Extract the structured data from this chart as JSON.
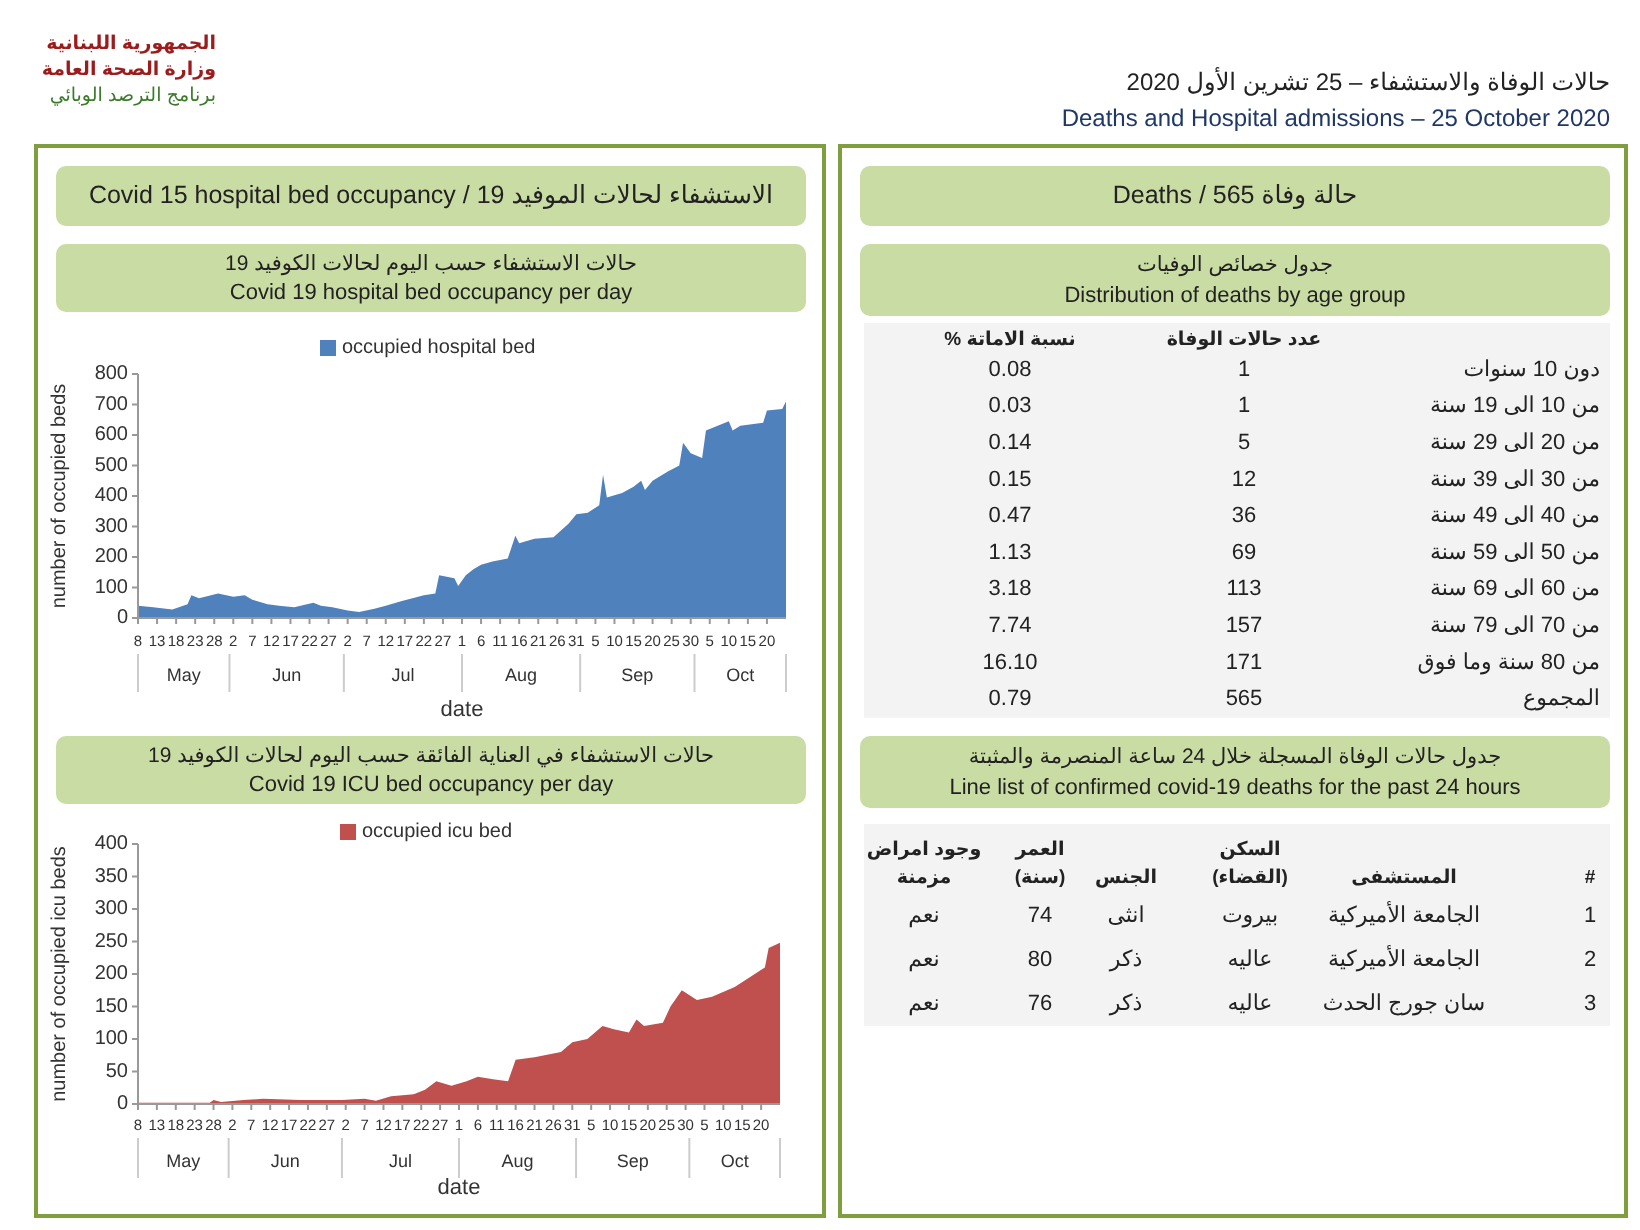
{
  "chart_data": [
    {
      "type": "other",
      "title": "حالات الوفاة والاستشفاء – 25 تشرين الأول 2020",
      "subtitle": "Deaths and Hospital admissions – 25 October 2020",
      "annotations": [
        "الجمهورية اللبنانية",
        "وزارة الصحة العامة",
        "برنامج الترصد الوبائي"
      ]
    },
    {
      "type": "other",
      "title": "الاستشفاء لحالات الموفيد 19 / Covid 15 hospital bed occupancy"
    },
    {
      "type": "area",
      "title": "حالات الاستشفاء حسب اليوم لحالات الكوفيد 19",
      "subtitle": "Covid 19 hospital bed occupancy per day",
      "xlabel": "date",
      "ylabel": "number of occupied beds",
      "legend": "top",
      "x": [
        "2020-05-08",
        "2020-05-12",
        "2020-05-17",
        "2020-05-21",
        "2020-05-22",
        "2020-05-24",
        "2020-05-29",
        "2020-06-02",
        "2020-06-05",
        "2020-06-07",
        "2020-06-11",
        "2020-06-14",
        "2020-06-18",
        "2020-06-23",
        "2020-06-25",
        "2020-06-28",
        "2020-07-02",
        "2020-07-05",
        "2020-07-09",
        "2020-07-12",
        "2020-07-16",
        "2020-07-19",
        "2020-07-22",
        "2020-07-25",
        "2020-07-26",
        "2020-07-30",
        "2020-07-31",
        "2020-08-02",
        "2020-08-04",
        "2020-08-06",
        "2020-08-09",
        "2020-08-13",
        "2020-08-15",
        "2020-08-16",
        "2020-08-20",
        "2020-08-25",
        "2020-08-29",
        "2020-08-31",
        "2020-09-03",
        "2020-09-06",
        "2020-09-07",
        "2020-09-08",
        "2020-09-12",
        "2020-09-15",
        "2020-09-17",
        "2020-09-18",
        "2020-09-20",
        "2020-09-24",
        "2020-09-27",
        "2020-09-28",
        "2020-09-30",
        "2020-10-03",
        "2020-10-04",
        "2020-10-10",
        "2020-10-11",
        "2020-10-13",
        "2020-10-19",
        "2020-10-20",
        "2020-10-24",
        "2020-10-25"
      ],
      "series": [
        {
          "name": "occupied hospital bed",
          "color": "#4f81bd",
          "values": [
            40,
            35,
            28,
            45,
            75,
            65,
            80,
            70,
            75,
            60,
            45,
            40,
            35,
            50,
            40,
            35,
            25,
            20,
            30,
            40,
            55,
            65,
            75,
            80,
            140,
            130,
            105,
            140,
            160,
            175,
            185,
            195,
            270,
            245,
            260,
            265,
            310,
            340,
            345,
            370,
            470,
            395,
            410,
            430,
            450,
            420,
            450,
            480,
            500,
            575,
            540,
            525,
            615,
            645,
            615,
            630,
            640,
            680,
            685,
            710
          ]
        }
      ],
      "xlim": [
        "2020-05-08",
        "2020-10-25"
      ],
      "ylim": [
        0,
        800
      ],
      "yticks": [
        0,
        100,
        200,
        300,
        400,
        500,
        600,
        700,
        800
      ],
      "xticks": [
        {
          "value": "2020-05-08",
          "label": "8"
        },
        {
          "value": "2020-05-13",
          "label": "13"
        },
        {
          "value": "2020-05-18",
          "label": "18"
        },
        {
          "value": "2020-05-23",
          "label": "23"
        },
        {
          "value": "2020-05-28",
          "label": "28"
        },
        {
          "value": "2020-06-02",
          "label": "2"
        },
        {
          "value": "2020-06-07",
          "label": "7"
        },
        {
          "value": "2020-06-12",
          "label": "12"
        },
        {
          "value": "2020-06-17",
          "label": "17"
        },
        {
          "value": "2020-06-22",
          "label": "22"
        },
        {
          "value": "2020-06-27",
          "label": "27"
        },
        {
          "value": "2020-07-02",
          "label": "2"
        },
        {
          "value": "2020-07-07",
          "label": "7"
        },
        {
          "value": "2020-07-12",
          "label": "12"
        },
        {
          "value": "2020-07-17",
          "label": "17"
        },
        {
          "value": "2020-07-22",
          "label": "22"
        },
        {
          "value": "2020-07-27",
          "label": "27"
        },
        {
          "value": "2020-08-01",
          "label": "1"
        },
        {
          "value": "2020-08-06",
          "label": "6"
        },
        {
          "value": "2020-08-11",
          "label": "11"
        },
        {
          "value": "2020-08-16",
          "label": "16"
        },
        {
          "value": "2020-08-21",
          "label": "21"
        },
        {
          "value": "2020-08-26",
          "label": "26"
        },
        {
          "value": "2020-08-31",
          "label": "31"
        },
        {
          "value": "2020-09-05",
          "label": "5"
        },
        {
          "value": "2020-09-10",
          "label": "10"
        },
        {
          "value": "2020-09-15",
          "label": "15"
        },
        {
          "value": "2020-09-20",
          "label": "20"
        },
        {
          "value": "2020-09-25",
          "label": "25"
        },
        {
          "value": "2020-09-30",
          "label": "30"
        },
        {
          "value": "2020-10-05",
          "label": "5"
        },
        {
          "value": "2020-10-10",
          "label": "10"
        },
        {
          "value": "2020-10-15",
          "label": "15"
        },
        {
          "value": "2020-10-20",
          "label": "20"
        }
      ],
      "annotations": [
        "May",
        "Jun",
        "Jul",
        "Aug",
        "Sep",
        "Oct"
      ]
    },
    {
      "type": "area",
      "title": "حالات الاستشفاء في العناية الفائقة حسب اليوم لحالات الكوفيد 19",
      "subtitle": "Covid 19 ICU bed occupancy per day",
      "xlabel": "date",
      "ylabel": "number of occupied icu beds",
      "legend": "top",
      "x": [
        "2020-05-08",
        "2020-05-27",
        "2020-05-28",
        "2020-05-30",
        "2020-06-05",
        "2020-06-10",
        "2020-06-20",
        "2020-07-01",
        "2020-07-07",
        "2020-07-10",
        "2020-07-14",
        "2020-07-20",
        "2020-07-23",
        "2020-07-26",
        "2020-07-30",
        "2020-08-03",
        "2020-08-06",
        "2020-08-10",
        "2020-08-14",
        "2020-08-16",
        "2020-08-21",
        "2020-08-28",
        "2020-08-31",
        "2020-09-04",
        "2020-09-08",
        "2020-09-11",
        "2020-09-15",
        "2020-09-17",
        "2020-09-19",
        "2020-09-24",
        "2020-09-26",
        "2020-09-29",
        "2020-10-03",
        "2020-10-07",
        "2020-10-13",
        "2020-10-17",
        "2020-10-21",
        "2020-10-22",
        "2020-10-25"
      ],
      "series": [
        {
          "name": "occupied icu bed",
          "color": "#c0504d",
          "values": [
            2,
            2,
            6,
            3,
            6,
            8,
            6,
            6,
            8,
            5,
            12,
            15,
            22,
            35,
            28,
            35,
            42,
            38,
            35,
            68,
            72,
            80,
            95,
            100,
            120,
            115,
            110,
            130,
            120,
            125,
            150,
            175,
            160,
            165,
            180,
            195,
            210,
            240,
            248
          ]
        }
      ],
      "xlim": [
        "2020-05-08",
        "2020-10-25"
      ],
      "ylim": [
        0,
        400
      ],
      "yticks": [
        0,
        50,
        100,
        150,
        200,
        250,
        300,
        350,
        400
      ],
      "xticks": [
        {
          "value": "2020-05-08",
          "label": "8"
        },
        {
          "value": "2020-05-13",
          "label": "13"
        },
        {
          "value": "2020-05-18",
          "label": "18"
        },
        {
          "value": "2020-05-23",
          "label": "23"
        },
        {
          "value": "2020-05-28",
          "label": "28"
        },
        {
          "value": "2020-06-02",
          "label": "2"
        },
        {
          "value": "2020-06-07",
          "label": "7"
        },
        {
          "value": "2020-06-12",
          "label": "12"
        },
        {
          "value": "2020-06-17",
          "label": "17"
        },
        {
          "value": "2020-06-22",
          "label": "22"
        },
        {
          "value": "2020-06-27",
          "label": "27"
        },
        {
          "value": "2020-07-02",
          "label": "2"
        },
        {
          "value": "2020-07-07",
          "label": "7"
        },
        {
          "value": "2020-07-12",
          "label": "12"
        },
        {
          "value": "2020-07-17",
          "label": "17"
        },
        {
          "value": "2020-07-22",
          "label": "22"
        },
        {
          "value": "2020-07-27",
          "label": "27"
        },
        {
          "value": "2020-08-01",
          "label": "1"
        },
        {
          "value": "2020-08-06",
          "label": "6"
        },
        {
          "value": "2020-08-11",
          "label": "11"
        },
        {
          "value": "2020-08-16",
          "label": "16"
        },
        {
          "value": "2020-08-21",
          "label": "21"
        },
        {
          "value": "2020-08-26",
          "label": "26"
        },
        {
          "value": "2020-08-31",
          "label": "31"
        },
        {
          "value": "2020-09-05",
          "label": "5"
        },
        {
          "value": "2020-09-10",
          "label": "10"
        },
        {
          "value": "2020-09-15",
          "label": "15"
        },
        {
          "value": "2020-09-20",
          "label": "20"
        },
        {
          "value": "2020-09-25",
          "label": "25"
        },
        {
          "value": "2020-09-30",
          "label": "30"
        },
        {
          "value": "2020-10-05",
          "label": "5"
        },
        {
          "value": "2020-10-10",
          "label": "10"
        },
        {
          "value": "2020-10-15",
          "label": "15"
        },
        {
          "value": "2020-10-20",
          "label": "20"
        }
      ],
      "annotations": [
        "May",
        "Jun",
        "Jul",
        "Aug",
        "Sep",
        "Oct"
      ]
    },
    {
      "type": "other",
      "title": "حالة وفاة 565 / Deaths"
    },
    {
      "type": "other",
      "title": "جدول خصائص الوفيات",
      "subtitle": "Distribution of deaths by age group",
      "categories": [
        null,
        "عدد حالات الوفاة",
        "نسبة الاماتة %"
      ],
      "annotations": [
        "دون 10 سنوات",
        "1",
        "0.08",
        "من 10 الى 19 سنة",
        "1",
        "0.03",
        "من 20 الى 29 سنة",
        "5",
        "0.14",
        "من 30 الى 39 سنة",
        "12",
        "0.15",
        "من 40 الى 49 سنة",
        "36",
        "0.47",
        "من 50 الى 59 سنة",
        "69",
        "1.13",
        "من 60 الى 69 سنة",
        "113",
        "3.18",
        "من 70 الى 79 سنة",
        "157",
        "7.74",
        "من 80 سنة وما فوق",
        "171",
        "16.10",
        "المجموع",
        "565",
        "0.79"
      ]
    },
    {
      "type": "other",
      "title": "جدول حالات الوفاة المسجلة خلال 24 ساعة المنصرمة والمثبتة",
      "subtitle": "Line list of confirmed covid-19 deaths for the past 24 hours",
      "categories": [
        "#",
        "المستشفى",
        "السكن (القضاء)",
        "الجنس",
        "العمر (سنة)",
        "وجود امراض مزمنة"
      ],
      "annotations": [
        "1",
        "الجامعة الأميركية",
        "بيروت",
        "انثى",
        "74",
        "نعم",
        "2",
        "الجامعة الأميركية",
        "عاليه",
        "ذكر",
        "80",
        "نعم",
        "3",
        "سان جورج الحدث",
        "عاليه",
        "ذكر",
        "76",
        "نعم"
      ]
    }
  ]
}
